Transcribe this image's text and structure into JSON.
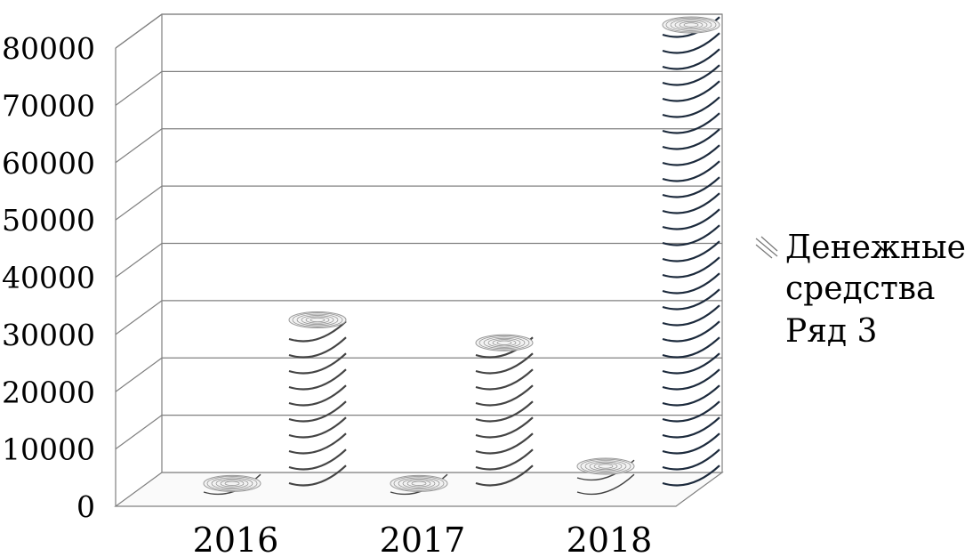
{
  "chart_data": {
    "type": "bar",
    "style": "3d-cylinder",
    "categories": [
      "2016",
      "2017",
      "2018"
    ],
    "series": [
      {
        "values": [
          1500,
          1500,
          4500
        ]
      },
      {
        "values": [
          28500,
          24500,
          80000
        ]
      }
    ],
    "ylim": [
      0,
      80000
    ],
    "yticks": [
      "0",
      "10000",
      "20000",
      "30000",
      "40000",
      "50000",
      "60000",
      "70000",
      "80000"
    ],
    "grid": true,
    "legend": {
      "placement": "right",
      "entries": [
        "Денежные",
        "средства",
        "Ряд 3"
      ]
    },
    "colors": {
      "frame": "#808080",
      "light_cylinder": "#444444",
      "dark_cylinder": "#1c2a3c"
    }
  }
}
